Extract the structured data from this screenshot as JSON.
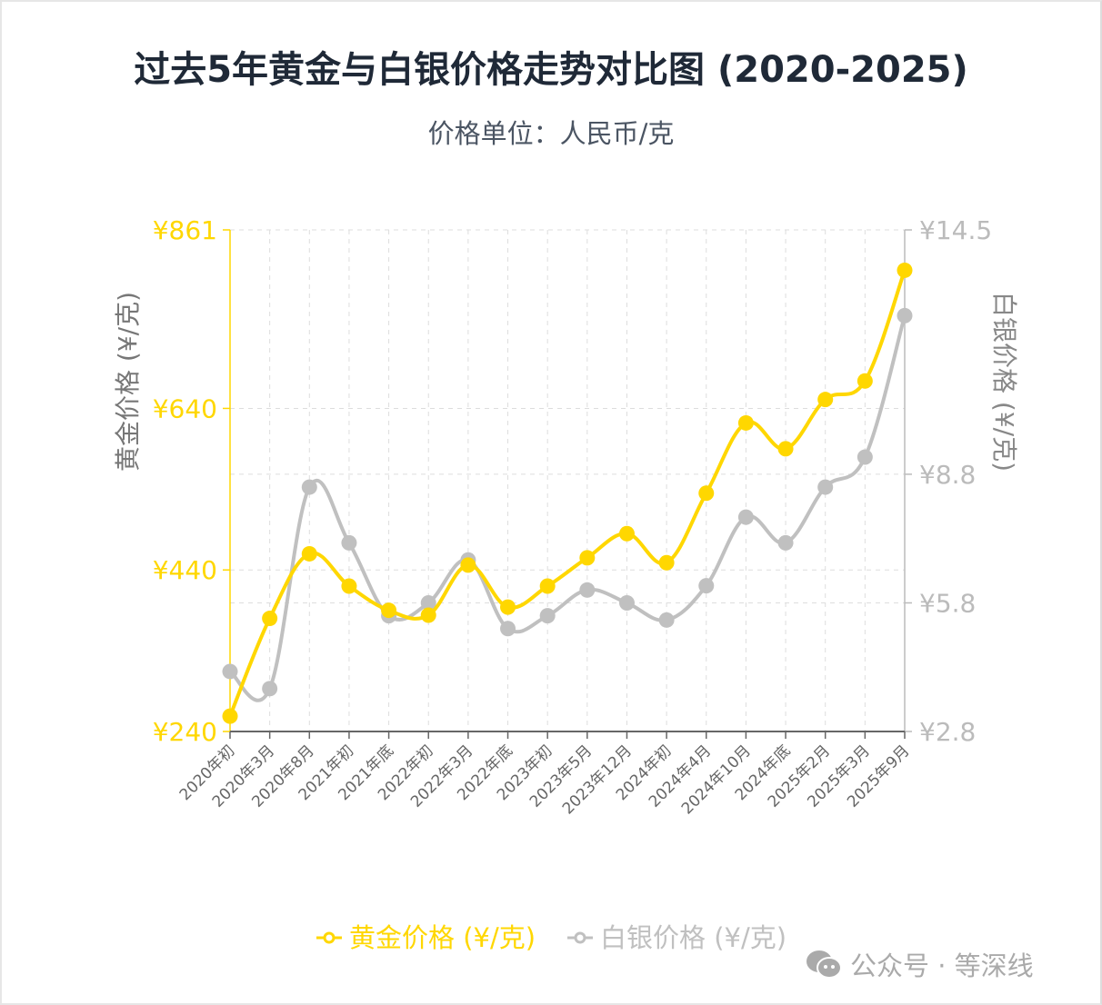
{
  "chart_data": {
    "type": "line",
    "title": "过去5年黄金与白银价格走势对比图 (2020-2025)",
    "subtitle": "价格单位：人民币/克",
    "categories": [
      "2020年初",
      "2020年3月",
      "2020年8月",
      "2021年初",
      "2021年底",
      "2022年初",
      "2022年3月",
      "2022年底",
      "2023年初",
      "2023年5月",
      "2023年12月",
      "2024年初",
      "2024年4月",
      "2024年10月",
      "2024年底",
      "2025年2月",
      "2025年3月",
      "2025年9月"
    ],
    "y_left": {
      "label": "黄金价格 (¥/克)",
      "ylim": [
        240,
        861
      ],
      "ticks": [
        "¥240",
        "¥440",
        "¥640",
        "¥861"
      ],
      "tick_values": [
        240,
        440,
        640,
        861
      ],
      "color": "#FFD700"
    },
    "y_right": {
      "label": "白银价格 (¥/克)",
      "ylim": [
        2.8,
        14.5
      ],
      "ticks": [
        "¥2.8",
        "¥5.8",
        "¥8.8",
        "¥14.5"
      ],
      "tick_values": [
        2.8,
        5.8,
        8.8,
        14.5
      ],
      "color": "#BDBDBD"
    },
    "series": [
      {
        "name": "黄金价格 (¥/克)",
        "axis": "left",
        "color": "#FFD700",
        "values": [
          259,
          380,
          460,
          420,
          390,
          384,
          446,
          394,
          420,
          455,
          485,
          449,
          535,
          622,
          590,
          651,
          674,
          811
        ]
      },
      {
        "name": "白银价格 (¥/克)",
        "axis": "right",
        "color": "#C0C0C0",
        "values": [
          4.2,
          3.8,
          8.5,
          7.2,
          5.5,
          5.8,
          6.8,
          5.2,
          5.5,
          6.1,
          5.8,
          5.4,
          6.2,
          7.8,
          7.2,
          8.5,
          9.2,
          12.5
        ]
      }
    ],
    "grid": true,
    "legend": "bottom"
  },
  "watermark": "公众号 · 等深线"
}
